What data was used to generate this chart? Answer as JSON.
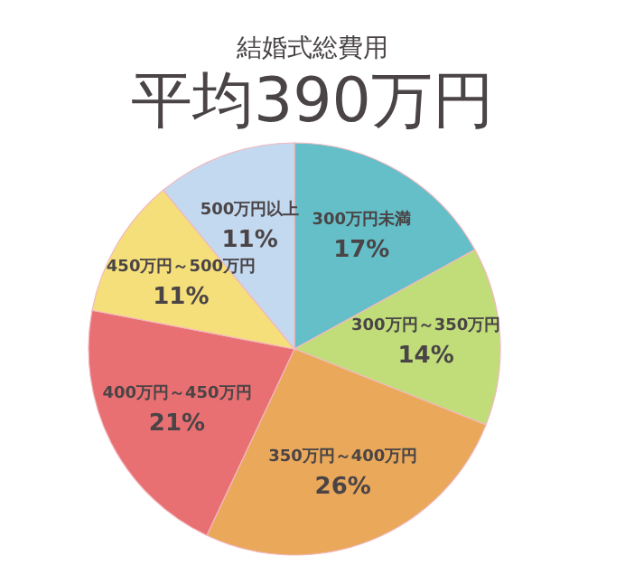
{
  "chart_data": {
    "type": "pie",
    "title": "結婚式総費用",
    "subtitle": "平均390万円",
    "categories": [
      "300万円未満",
      "300万円～350万円",
      "350万円～400万円",
      "400万円～450万円",
      "450万円～500万円",
      "500万円以上"
    ],
    "values": [
      17,
      14,
      26,
      21,
      11,
      11
    ],
    "value_labels": [
      "17%",
      "14%",
      "26%",
      "21%",
      "11%",
      "11%"
    ],
    "colors": [
      "#64bfc8",
      "#c0dd7a",
      "#e9a85a",
      "#e97072",
      "#f5df7a",
      "#c3d9f0"
    ],
    "legend": false
  }
}
